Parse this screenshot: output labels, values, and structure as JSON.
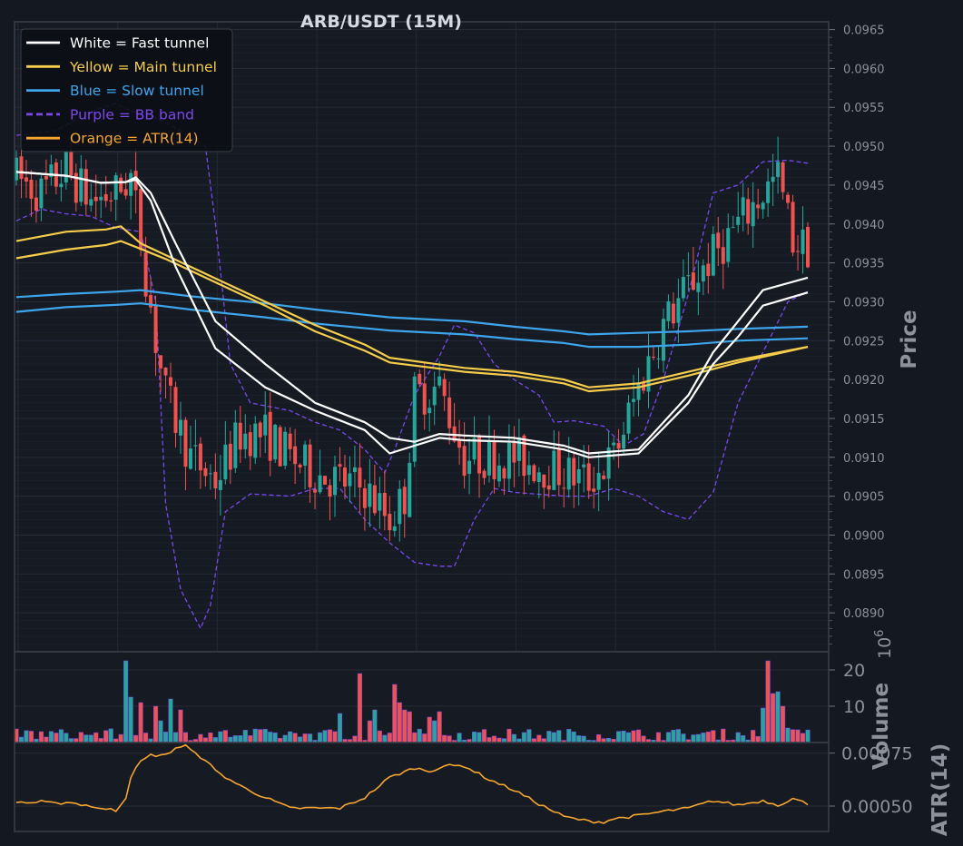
{
  "chart_data": [
    {
      "type": "candlestick",
      "title": "ARB/USDT (15M)",
      "ylabel": "Price",
      "ylim": [
        0.0885,
        0.0966
      ],
      "yticks": [
        "0.0890",
        "0.0895",
        "0.0900",
        "0.0905",
        "0.0910",
        "0.0915",
        "0.0920",
        "0.0925",
        "0.0930",
        "0.0935",
        "0.0940",
        "0.0945",
        "0.0950",
        "0.0955",
        "0.0960",
        "0.0965"
      ],
      "grid": true,
      "legend_position": "top-left",
      "legend": [
        {
          "label": "White = Fast tunnel",
          "color": "#ffffff",
          "style": "solid"
        },
        {
          "label": "Yellow = Main tunnel",
          "color": "#f5cd4a",
          "style": "solid"
        },
        {
          "label": "Blue = Slow tunnel",
          "color": "#3da5ec",
          "style": "solid"
        },
        {
          "label": "Purple = BB band",
          "color": "#7b48ef",
          "style": "dashed"
        },
        {
          "label": "Orange = ATR(14)",
          "color": "#f6a52e",
          "style": "solid"
        }
      ],
      "candle_count": 160,
      "candle_colors": {
        "up": "#26a69a",
        "down": "#ef5350"
      },
      "candle_shape": {
        "points": [
          [
            0,
            0.0946
          ],
          [
            5,
            0.0944
          ],
          [
            10,
            0.0947
          ],
          [
            15,
            0.0943
          ],
          [
            20,
            0.0944
          ],
          [
            23,
            0.0946
          ],
          [
            25,
            0.0938
          ],
          [
            28,
            0.0925
          ],
          [
            30,
            0.0918
          ],
          [
            35,
            0.091
          ],
          [
            40,
            0.0907
          ],
          [
            45,
            0.0913
          ],
          [
            50,
            0.0913
          ],
          [
            55,
            0.091
          ],
          [
            60,
            0.0908
          ],
          [
            65,
            0.0907
          ],
          [
            70,
            0.0906
          ],
          [
            75,
            0.0902
          ],
          [
            78,
            0.0905
          ],
          [
            80,
            0.0918
          ],
          [
            85,
            0.0919
          ],
          [
            90,
            0.091
          ],
          [
            95,
            0.091
          ],
          [
            100,
            0.091
          ],
          [
            105,
            0.0909
          ],
          [
            110,
            0.0908
          ],
          [
            115,
            0.0907
          ],
          [
            120,
            0.091
          ],
          [
            125,
            0.0919
          ],
          [
            130,
            0.0927
          ],
          [
            135,
            0.0932
          ],
          [
            140,
            0.0936
          ],
          [
            145,
            0.094
          ],
          [
            150,
            0.0944
          ],
          [
            153,
            0.0946
          ],
          [
            156,
            0.0938
          ],
          [
            159,
            0.0937
          ]
        ],
        "amplitude": 0.0003
      },
      "fast_tunnel": {
        "upper": [
          [
            0,
            0.09467
          ],
          [
            10,
            0.09462
          ],
          [
            17,
            0.09453
          ],
          [
            22,
            0.09454
          ],
          [
            24,
            0.0946
          ],
          [
            27,
            0.0944
          ],
          [
            32,
            0.09375
          ],
          [
            40,
            0.09275
          ],
          [
            50,
            0.0922
          ],
          [
            60,
            0.0917
          ],
          [
            70,
            0.09145
          ],
          [
            75,
            0.09125
          ],
          [
            80,
            0.0912
          ],
          [
            85,
            0.0913
          ],
          [
            90,
            0.09128
          ],
          [
            100,
            0.09125
          ],
          [
            110,
            0.09115
          ],
          [
            115,
            0.09105
          ],
          [
            125,
            0.0911
          ],
          [
            135,
            0.0918
          ],
          [
            140,
            0.09235
          ],
          [
            145,
            0.09275
          ],
          [
            150,
            0.09315
          ],
          [
            159,
            0.09331
          ]
        ],
        "lower": [
          [
            0,
            0.09467
          ],
          [
            10,
            0.09462
          ],
          [
            17,
            0.09453
          ],
          [
            22,
            0.09454
          ],
          [
            24,
            0.09457
          ],
          [
            27,
            0.0943
          ],
          [
            32,
            0.09345
          ],
          [
            40,
            0.0924
          ],
          [
            50,
            0.0919
          ],
          [
            60,
            0.0916
          ],
          [
            70,
            0.09135
          ],
          [
            75,
            0.09105
          ],
          [
            80,
            0.09115
          ],
          [
            85,
            0.09125
          ],
          [
            90,
            0.09122
          ],
          [
            100,
            0.0912
          ],
          [
            110,
            0.0911
          ],
          [
            115,
            0.091
          ],
          [
            125,
            0.09105
          ],
          [
            135,
            0.0917
          ],
          [
            140,
            0.0922
          ],
          [
            145,
            0.09255
          ],
          [
            150,
            0.09295
          ],
          [
            159,
            0.09312
          ]
        ]
      },
      "main_tunnel": {
        "upper": [
          [
            0,
            0.09378
          ],
          [
            10,
            0.0939
          ],
          [
            18,
            0.09393
          ],
          [
            21,
            0.09397
          ],
          [
            25,
            0.09375
          ],
          [
            30,
            0.0936
          ],
          [
            40,
            0.0933
          ],
          [
            50,
            0.093
          ],
          [
            60,
            0.0927
          ],
          [
            70,
            0.09245
          ],
          [
            75,
            0.09228
          ],
          [
            90,
            0.09215
          ],
          [
            100,
            0.0921
          ],
          [
            110,
            0.092
          ],
          [
            115,
            0.0919
          ],
          [
            125,
            0.09195
          ],
          [
            135,
            0.0921
          ],
          [
            145,
            0.09225
          ],
          [
            159,
            0.09242
          ]
        ],
        "lower": [
          [
            0,
            0.09356
          ],
          [
            10,
            0.09367
          ],
          [
            18,
            0.09373
          ],
          [
            21,
            0.09378
          ],
          [
            25,
            0.09368
          ],
          [
            30,
            0.09355
          ],
          [
            40,
            0.09325
          ],
          [
            50,
            0.09295
          ],
          [
            60,
            0.09262
          ],
          [
            70,
            0.09237
          ],
          [
            75,
            0.09222
          ],
          [
            90,
            0.0921
          ],
          [
            100,
            0.09205
          ],
          [
            110,
            0.09195
          ],
          [
            115,
            0.09185
          ],
          [
            125,
            0.0919
          ],
          [
            135,
            0.09205
          ],
          [
            145,
            0.09222
          ],
          [
            159,
            0.09242
          ]
        ]
      },
      "slow_tunnel": {
        "upper": [
          [
            0,
            0.09306
          ],
          [
            10,
            0.0931
          ],
          [
            20,
            0.09313
          ],
          [
            25,
            0.09315
          ],
          [
            35,
            0.09307
          ],
          [
            50,
            0.09298
          ],
          [
            60,
            0.0929
          ],
          [
            75,
            0.0928
          ],
          [
            90,
            0.09275
          ],
          [
            100,
            0.09268
          ],
          [
            110,
            0.09262
          ],
          [
            115,
            0.09258
          ],
          [
            125,
            0.0926
          ],
          [
            135,
            0.09262
          ],
          [
            145,
            0.09265
          ],
          [
            159,
            0.09268
          ]
        ],
        "lower": [
          [
            0,
            0.09287
          ],
          [
            10,
            0.09293
          ],
          [
            20,
            0.09296
          ],
          [
            25,
            0.09298
          ],
          [
            35,
            0.0929
          ],
          [
            50,
            0.0928
          ],
          [
            60,
            0.09272
          ],
          [
            75,
            0.09263
          ],
          [
            90,
            0.09258
          ],
          [
            100,
            0.09252
          ],
          [
            110,
            0.09247
          ],
          [
            115,
            0.09242
          ],
          [
            125,
            0.09242
          ],
          [
            135,
            0.09245
          ],
          [
            145,
            0.0925
          ],
          [
            159,
            0.09253
          ]
        ]
      },
      "bb_band": {
        "upper": [
          [
            0,
            0.09514
          ],
          [
            8,
            0.0952
          ],
          [
            15,
            0.09545
          ],
          [
            20,
            0.09555
          ],
          [
            23,
            0.09545
          ],
          [
            27,
            0.0954
          ],
          [
            33,
            0.0952
          ],
          [
            38,
            0.095
          ],
          [
            40,
            0.094
          ],
          [
            43,
            0.0922
          ],
          [
            47,
            0.0917
          ],
          [
            55,
            0.0916
          ],
          [
            60,
            0.09145
          ],
          [
            65,
            0.09135
          ],
          [
            70,
            0.0911
          ],
          [
            74,
            0.0908
          ],
          [
            76,
            0.0911
          ],
          [
            80,
            0.0918
          ],
          [
            85,
            0.0923
          ],
          [
            88,
            0.0927
          ],
          [
            92,
            0.0926
          ],
          [
            96,
            0.0922
          ],
          [
            100,
            0.092
          ],
          [
            105,
            0.0918
          ],
          [
            108,
            0.09145
          ],
          [
            112,
            0.09147
          ],
          [
            118,
            0.0914
          ],
          [
            122,
            0.09115
          ],
          [
            126,
            0.0913
          ],
          [
            130,
            0.092
          ],
          [
            135,
            0.0931
          ],
          [
            140,
            0.0944
          ],
          [
            145,
            0.0945
          ],
          [
            150,
            0.0948
          ],
          [
            155,
            0.09482
          ],
          [
            159,
            0.09478
          ]
        ],
        "lower": [
          [
            0,
            0.09404
          ],
          [
            5,
            0.09419
          ],
          [
            10,
            0.09413
          ],
          [
            15,
            0.0941
          ],
          [
            20,
            0.09395
          ],
          [
            25,
            0.0939
          ],
          [
            28,
            0.093
          ],
          [
            30,
            0.0904
          ],
          [
            33,
            0.0893
          ],
          [
            37,
            0.0888
          ],
          [
            39,
            0.0891
          ],
          [
            42,
            0.0903
          ],
          [
            47,
            0.09053
          ],
          [
            55,
            0.0905
          ],
          [
            60,
            0.0906
          ],
          [
            65,
            0.0906
          ],
          [
            70,
            0.0902
          ],
          [
            75,
            0.0899
          ],
          [
            80,
            0.08965
          ],
          [
            85,
            0.0896
          ],
          [
            88,
            0.0896
          ],
          [
            92,
            0.0902
          ],
          [
            96,
            0.0906
          ],
          [
            100,
            0.09055
          ],
          [
            110,
            0.0905
          ],
          [
            115,
            0.0905
          ],
          [
            120,
            0.0906
          ],
          [
            125,
            0.0905
          ],
          [
            130,
            0.0903
          ],
          [
            135,
            0.0902
          ],
          [
            140,
            0.09055
          ],
          [
            145,
            0.0917
          ],
          [
            150,
            0.09235
          ],
          [
            155,
            0.093
          ],
          [
            159,
            0.09313
          ]
        ]
      }
    },
    {
      "type": "bar",
      "ylabel": "Volume",
      "scale_label": "10",
      "scale_exponent": "6",
      "ylim": [
        0,
        24
      ],
      "yticks": [
        "10",
        "20"
      ],
      "bar_count": 160,
      "spikes": [
        [
          22,
          22.5
        ],
        [
          23,
          12.5
        ],
        [
          25,
          11
        ],
        [
          28,
          10
        ],
        [
          29,
          6
        ],
        [
          31,
          12
        ],
        [
          33,
          9
        ],
        [
          65,
          8
        ],
        [
          69,
          19
        ],
        [
          71,
          6
        ],
        [
          72,
          9
        ],
        [
          76,
          16
        ],
        [
          77,
          11
        ],
        [
          78,
          9
        ],
        [
          79,
          8.5
        ],
        [
          83,
          7
        ],
        [
          84,
          6
        ],
        [
          85,
          8.5
        ],
        [
          150,
          9.5
        ],
        [
          151,
          22.5
        ],
        [
          152,
          13.5
        ],
        [
          153,
          14
        ],
        [
          154,
          10
        ],
        [
          155,
          4
        ]
      ],
      "colors": {
        "up": "#26a69a",
        "down": "#ef5350"
      }
    },
    {
      "type": "line",
      "ylabel": "ATR(14)",
      "ylim": [
        0.00038,
        0.0008
      ],
      "yticks": [
        "0.00050",
        "0.00075"
      ],
      "color": "#f6a52e",
      "points": [
        [
          0,
          0.00052
        ],
        [
          3,
          0.000515
        ],
        [
          5,
          0.00052
        ],
        [
          8,
          0.00051
        ],
        [
          10,
          0.00052
        ],
        [
          15,
          0.0005
        ],
        [
          18,
          0.00048
        ],
        [
          19,
          0.00049
        ],
        [
          20,
          0.00048
        ],
        [
          22,
          0.00054
        ],
        [
          23,
          0.00064
        ],
        [
          25,
          0.00071
        ],
        [
          27,
          0.00074
        ],
        [
          30,
          0.00074
        ],
        [
          32,
          0.000775
        ],
        [
          34,
          0.000785
        ],
        [
          36,
          0.000745
        ],
        [
          38,
          0.00072
        ],
        [
          40,
          0.000665
        ],
        [
          45,
          0.000595
        ],
        [
          50,
          0.00054
        ],
        [
          55,
          0.00049
        ],
        [
          60,
          0.00049
        ],
        [
          65,
          0.00049
        ],
        [
          70,
          0.00054
        ],
        [
          75,
          0.000635
        ],
        [
          80,
          0.00068
        ],
        [
          83,
          0.000665
        ],
        [
          86,
          0.00069
        ],
        [
          90,
          0.00069
        ],
        [
          95,
          0.000625
        ],
        [
          100,
          0.000575
        ],
        [
          105,
          0.00051
        ],
        [
          110,
          0.00045
        ],
        [
          115,
          0.000428
        ],
        [
          118,
          0.000425
        ],
        [
          120,
          0.00044
        ],
        [
          125,
          0.000455
        ],
        [
          130,
          0.000475
        ],
        [
          135,
          0.00049
        ],
        [
          140,
          0.000525
        ],
        [
          145,
          0.000505
        ],
        [
          150,
          0.000525
        ],
        [
          153,
          0.000505
        ],
        [
          156,
          0.000535
        ],
        [
          159,
          0.00051
        ]
      ]
    }
  ]
}
